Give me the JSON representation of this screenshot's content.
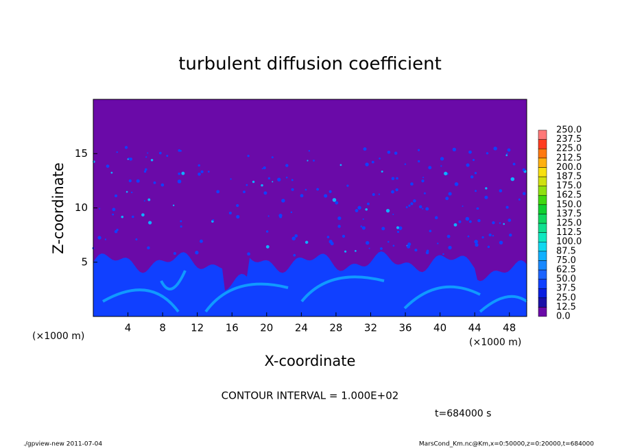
{
  "chart_data": {
    "type": "contour",
    "title": "turbulent diffusion coefficient",
    "xlabel": "X-coordinate",
    "ylabel": "Z-coordinate",
    "x_unit": "(×1000 m)",
    "xlim": [
      0,
      50
    ],
    "xticks": [
      4,
      8,
      12,
      16,
      20,
      24,
      28,
      32,
      36,
      40,
      44,
      48
    ],
    "ylim": [
      0,
      20
    ],
    "yticks": [
      5,
      10,
      15
    ],
    "levels": [
      {
        "value": 0,
        "label": "0.0"
      },
      {
        "value": 12.5,
        "label": "12.5"
      },
      {
        "value": 25,
        "label": "25.0"
      },
      {
        "value": 37.5,
        "label": "37.5"
      },
      {
        "value": 50,
        "label": "50.0"
      },
      {
        "value": 62.5,
        "label": "62.5"
      },
      {
        "value": 75,
        "label": "75.0"
      },
      {
        "value": 87.5,
        "label": "87.5"
      },
      {
        "value": 100,
        "label": "100.0"
      },
      {
        "value": 112.5,
        "label": "112.5"
      },
      {
        "value": 125,
        "label": "125.0"
      },
      {
        "value": 137.5,
        "label": "137.5"
      },
      {
        "value": 150,
        "label": "150.0"
      },
      {
        "value": 162.5,
        "label": "162.5"
      },
      {
        "value": 175,
        "label": "175.0"
      },
      {
        "value": 187.5,
        "label": "187.5"
      },
      {
        "value": 200,
        "label": "200.0"
      },
      {
        "value": 212.5,
        "label": "212.5"
      },
      {
        "value": 225,
        "label": "225.0"
      },
      {
        "value": 237.5,
        "label": "237.5"
      },
      {
        "value": 250,
        "label": "250.0"
      }
    ],
    "level_colors": [
      "#6a0aa8",
      "#1a10a8",
      "#0a1ee0",
      "#1040ff",
      "#1c64ff",
      "#1888ff",
      "#10b0ff",
      "#10d8f0",
      "#10e8c0",
      "#10e090",
      "#10d860",
      "#10d030",
      "#40d810",
      "#90e010",
      "#d0e010",
      "#f8e010",
      "#ffb010",
      "#ff7810",
      "#ff3c20",
      "#ff7878"
    ],
    "annotation": "CONTOUR INTERVAL = 1.000E+02",
    "time_label": "t=684000 s",
    "footer_left": "./gpview-new  2011-07-04",
    "footer_right": "MarsCond_Km.nc@Km,x=0:50000,z=0:20000,t=684000"
  }
}
